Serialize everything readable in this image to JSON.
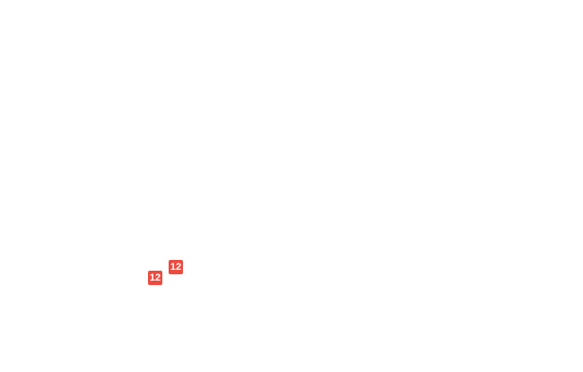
{
  "map": {
    "markers": [
      {
        "label": "12",
        "position": "upper-right",
        "badge_color": "#ED4B40",
        "text_color": "#FFFFFF"
      },
      {
        "label": "12",
        "position": "lower-left",
        "badge_color": "#ED4B40",
        "text_color": "#FFFFFF"
      }
    ]
  },
  "colors": {
    "background": "#FFFFFF",
    "marker_red": "#ED4B40",
    "marker_text": "#FFFFFF"
  }
}
